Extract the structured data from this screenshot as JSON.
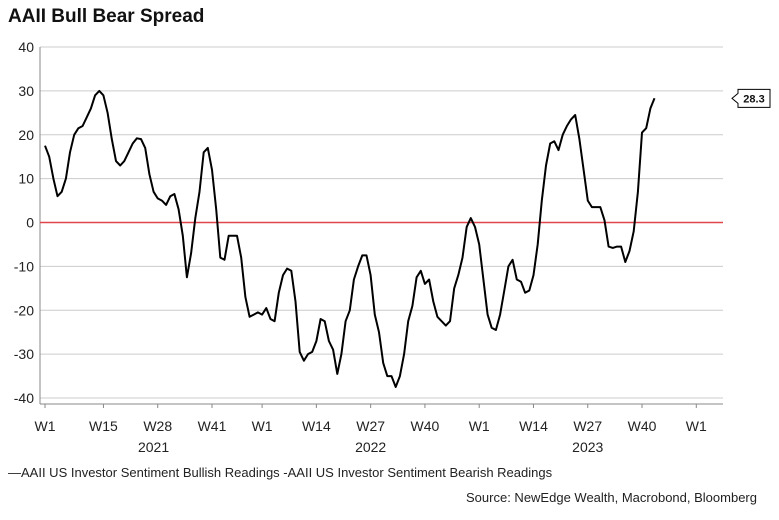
{
  "title": "AAII Bull Bear Spread",
  "legend": {
    "label": "—AAII US Investor Sentiment Bullish Readings  -AAII US Investor Sentiment Bearish Readings"
  },
  "source": "Source: NewEdge Wealth, Macrobond, Bloomberg",
  "colors": {
    "line": "#000000",
    "zero_line": "#e0474c",
    "grid": "#cccccc"
  },
  "chart_data": {
    "type": "line",
    "title": "AAII Bull Bear Spread",
    "ylim": [
      -40,
      40
    ],
    "y_ticks": [
      40,
      30,
      20,
      10,
      0,
      -10,
      -20,
      -30,
      -40
    ],
    "x_ticks": [
      {
        "label": "W1",
        "week": 0
      },
      {
        "label": "W15",
        "week": 14
      },
      {
        "label": "W28",
        "week": 27
      },
      {
        "label": "W41",
        "week": 40
      },
      {
        "label": "W1",
        "week": 52
      },
      {
        "label": "W14",
        "week": 65
      },
      {
        "label": "W27",
        "week": 78
      },
      {
        "label": "W40",
        "week": 91
      },
      {
        "label": "W1",
        "week": 104
      },
      {
        "label": "W14",
        "week": 117
      },
      {
        "label": "W27",
        "week": 130
      },
      {
        "label": "W40",
        "week": 143
      },
      {
        "label": "W1",
        "week": 156
      }
    ],
    "years": [
      {
        "label": "2021",
        "week": 26
      },
      {
        "label": "2022",
        "week": 78
      },
      {
        "label": "2023",
        "week": 130
      }
    ],
    "x_range_weeks": [
      0,
      160
    ],
    "grid": true,
    "reference_line": 0,
    "last_value_label": "28.3",
    "series": [
      {
        "values": [
          17.5,
          15,
          10,
          6,
          7,
          10,
          16,
          20,
          21.5,
          22,
          24,
          26,
          29,
          30,
          29,
          25,
          19,
          14,
          13,
          14,
          16,
          18,
          19.2,
          19,
          17,
          11,
          7,
          5.5,
          5,
          4,
          6,
          6.5,
          3,
          -3,
          -12.5,
          -7,
          1,
          7,
          16,
          17,
          12,
          3,
          -8,
          -8.5,
          -3,
          -3,
          -3,
          -8,
          -17,
          -21.5,
          -21,
          -20.5,
          -21,
          -19.5,
          -22,
          -22.5,
          -16,
          -12,
          -10.5,
          -11,
          -18,
          -29.5,
          -31.5,
          -30,
          -29.5,
          -27,
          -22,
          -22.5,
          -27,
          -29,
          -34.5,
          -30,
          -22.5,
          -20,
          -13,
          -10,
          -7.5,
          -7.5,
          -12,
          -21,
          -25,
          -32,
          -35,
          -35,
          -37.5,
          -35,
          -30,
          -22.5,
          -19,
          -12.5,
          -11,
          -14,
          -13,
          -18,
          -21.5,
          -22.5,
          -23.5,
          -22.5,
          -15,
          -12,
          -8,
          -1,
          1,
          -1,
          -5,
          -13,
          -21,
          -24,
          -24.5,
          -21,
          -15.5,
          -10,
          -8.5,
          -13,
          -13.5,
          -16,
          -15.5,
          -12,
          -5,
          5,
          13,
          18,
          18.5,
          16.5,
          20,
          22,
          23.5,
          24.5,
          19,
          12,
          5,
          3.5,
          3.5,
          3.5,
          0.5,
          -5.5,
          -5.8,
          -5.5,
          -5.5,
          -9,
          -6.5,
          -2,
          7,
          20.5,
          21.5,
          26,
          28.3
        ]
      }
    ]
  }
}
